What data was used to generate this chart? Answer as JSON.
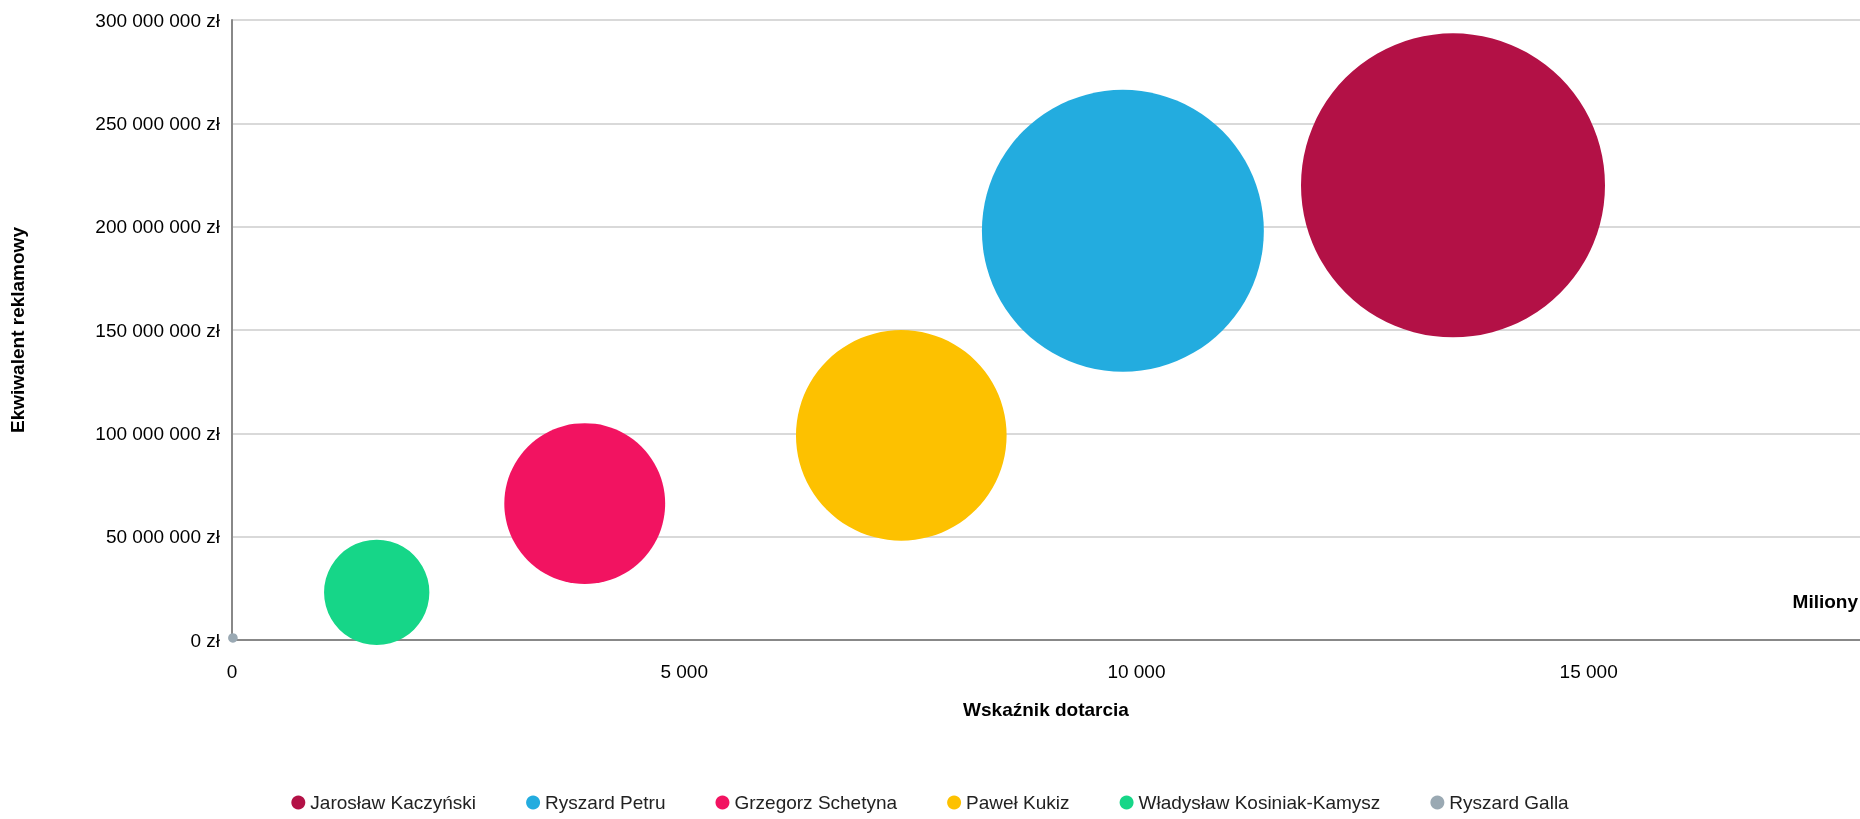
{
  "chart_data": {
    "type": "bubble",
    "xlabel": "Wskaźnik dotarcia",
    "ylabel": "Ekwiwalent reklamowy",
    "annotations": [
      "Miliony"
    ],
    "xlim": [
      0,
      18000
    ],
    "xticks": [
      0,
      {
        "value": 5000,
        "label": "5 000"
      },
      {
        "value": 10000,
        "label": "10 000"
      },
      {
        "value": 15000,
        "label": "15 000"
      }
    ],
    "ylim": [
      0,
      300000000
    ],
    "yticks": [
      {
        "value": 0,
        "label": "0 zł"
      },
      {
        "value": 50000000,
        "label": "50 000 000 zł"
      },
      {
        "value": 100000000,
        "label": "100 000 000 zł"
      },
      {
        "value": 150000000,
        "label": "150 000 000 zł"
      },
      {
        "value": 200000000,
        "label": "200 000 000 zł"
      },
      {
        "value": 250000000,
        "label": "250 000 000 zł"
      },
      {
        "value": 300000000,
        "label": "300 000 000 zł"
      }
    ],
    "grid": "y",
    "legend": "bottom",
    "marker": "circle",
    "series": [
      {
        "name": "Jarosław Kaczyński",
        "color": "#b31146",
        "x": [
          13500
        ],
        "values": [
          220000000
        ],
        "sizes": [
          1
        ]
      },
      {
        "name": "Ryszard Petru",
        "color": "#23acdf",
        "x": [
          9850
        ],
        "values": [
          198000000
        ],
        "sizes": [
          0.86
        ]
      },
      {
        "name": "Grzegorz Schetyna",
        "color": "#f21361",
        "x": [
          3900
        ],
        "values": [
          66000000
        ],
        "sizes": [
          0.28
        ]
      },
      {
        "name": "Paweł Kukiz",
        "color": "#fdc100",
        "x": [
          7400
        ],
        "values": [
          99000000
        ],
        "sizes": [
          0.48
        ]
      },
      {
        "name": "Władysław Kosiniak-Kamysz",
        "color": "#16d688",
        "x": [
          1600
        ],
        "values": [
          23000000
        ],
        "sizes": [
          0.12
        ]
      },
      {
        "name": "Ryszard Galla",
        "color": "#9aa9b3",
        "x": [
          10
        ],
        "values": [
          1000000
        ],
        "sizes": [
          0.001
        ]
      }
    ]
  }
}
